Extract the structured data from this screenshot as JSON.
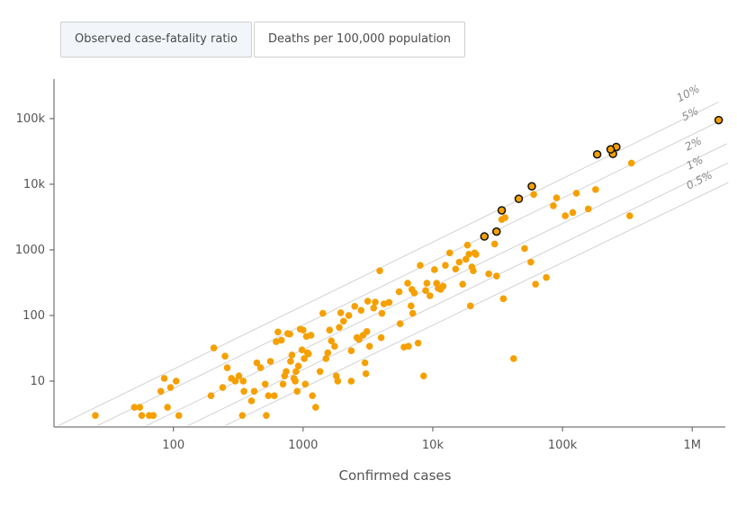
{
  "tabs": [
    {
      "label": "Observed case-fatality ratio",
      "active": true
    },
    {
      "label": "Deaths per 100,000 population",
      "active": false
    }
  ],
  "chart_data": {
    "type": "scatter",
    "scale": "log-log",
    "xlabel": "Confirmed cases",
    "ylabel": "",
    "xlim": [
      12,
      1800000
    ],
    "ylim": [
      2,
      400000
    ],
    "x_ticks": [
      {
        "v": 100,
        "label": "100"
      },
      {
        "v": 1000,
        "label": "1000"
      },
      {
        "v": 10000,
        "label": "10k"
      },
      {
        "v": 100000,
        "label": "100k"
      },
      {
        "v": 1000000,
        "label": "1M"
      }
    ],
    "y_ticks": [
      {
        "v": 10,
        "label": "10"
      },
      {
        "v": 100,
        "label": "100"
      },
      {
        "v": 1000,
        "label": "1000"
      },
      {
        "v": 10000,
        "label": "10k"
      },
      {
        "v": 100000,
        "label": "100k"
      }
    ],
    "reference_lines": [
      {
        "label": "10%",
        "ratio": 0.1
      },
      {
        "label": "5%",
        "ratio": 0.05
      },
      {
        "label": "2%",
        "ratio": 0.02
      },
      {
        "label": "1%",
        "ratio": 0.01
      },
      {
        "label": "0.5%",
        "ratio": 0.005
      }
    ],
    "colors": {
      "point": "#f5a000",
      "highlight_stroke": "#111111",
      "reference": "#d2d2d2"
    },
    "highlighted": [
      [
        1600000,
        95000
      ],
      [
        260000,
        37000
      ],
      [
        245000,
        29000
      ],
      [
        235000,
        34000
      ],
      [
        185000,
        28500
      ],
      [
        58000,
        9300
      ],
      [
        46000,
        6000
      ],
      [
        34000,
        4000
      ],
      [
        31000,
        1900
      ],
      [
        25000,
        1600
      ]
    ],
    "points": [
      [
        25,
        3
      ],
      [
        50,
        4
      ],
      [
        55,
        4
      ],
      [
        57,
        3
      ],
      [
        65,
        3
      ],
      [
        70,
        3
      ],
      [
        80,
        7
      ],
      [
        85,
        11
      ],
      [
        90,
        4
      ],
      [
        95,
        8
      ],
      [
        105,
        10
      ],
      [
        110,
        3
      ],
      [
        195,
        6
      ],
      [
        205,
        32
      ],
      [
        240,
        8
      ],
      [
        250,
        24
      ],
      [
        260,
        16
      ],
      [
        280,
        11
      ],
      [
        300,
        10
      ],
      [
        320,
        12
      ],
      [
        340,
        3
      ],
      [
        345,
        10
      ],
      [
        350,
        7
      ],
      [
        400,
        5
      ],
      [
        420,
        7
      ],
      [
        440,
        19
      ],
      [
        470,
        16
      ],
      [
        510,
        9
      ],
      [
        520,
        3
      ],
      [
        540,
        6
      ],
      [
        560,
        20
      ],
      [
        600,
        6
      ],
      [
        620,
        40
      ],
      [
        640,
        56
      ],
      [
        680,
        42
      ],
      [
        700,
        9
      ],
      [
        720,
        12
      ],
      [
        740,
        14
      ],
      [
        760,
        53
      ],
      [
        790,
        52
      ],
      [
        800,
        20
      ],
      [
        820,
        25
      ],
      [
        850,
        11
      ],
      [
        870,
        10
      ],
      [
        880,
        14
      ],
      [
        900,
        7
      ],
      [
        920,
        17
      ],
      [
        950,
        62
      ],
      [
        980,
        30
      ],
      [
        1000,
        60
      ],
      [
        1020,
        22
      ],
      [
        1040,
        9
      ],
      [
        1060,
        48
      ],
      [
        1080,
        27
      ],
      [
        1100,
        26
      ],
      [
        1150,
        50
      ],
      [
        1180,
        6
      ],
      [
        1250,
        4
      ],
      [
        1350,
        14
      ],
      [
        1420,
        108
      ],
      [
        1500,
        22
      ],
      [
        1550,
        27
      ],
      [
        1600,
        60
      ],
      [
        1650,
        41
      ],
      [
        1750,
        34
      ],
      [
        1800,
        12
      ],
      [
        1850,
        10
      ],
      [
        1900,
        66
      ],
      [
        1950,
        110
      ],
      [
        2050,
        82
      ],
      [
        2250,
        100
      ],
      [
        2350,
        10
      ],
      [
        2350,
        29
      ],
      [
        2500,
        138
      ],
      [
        2600,
        46
      ],
      [
        2700,
        43
      ],
      [
        2800,
        120
      ],
      [
        2900,
        50
      ],
      [
        3000,
        19
      ],
      [
        3050,
        13
      ],
      [
        3100,
        57
      ],
      [
        3150,
        165
      ],
      [
        3250,
        34
      ],
      [
        3500,
        130
      ],
      [
        3600,
        160
      ],
      [
        3900,
        480
      ],
      [
        4000,
        46
      ],
      [
        4050,
        108
      ],
      [
        4200,
        150
      ],
      [
        4600,
        158
      ],
      [
        5500,
        230
      ],
      [
        5600,
        75
      ],
      [
        6000,
        33
      ],
      [
        6400,
        310
      ],
      [
        6500,
        34
      ],
      [
        6800,
        140
      ],
      [
        6900,
        250
      ],
      [
        7000,
        108
      ],
      [
        7200,
        220
      ],
      [
        7700,
        38
      ],
      [
        8000,
        580
      ],
      [
        8500,
        12
      ],
      [
        8800,
        240
      ],
      [
        9000,
        310
      ],
      [
        9500,
        200
      ],
      [
        10300,
        500
      ],
      [
        10700,
        310
      ],
      [
        11000,
        260
      ],
      [
        11500,
        250
      ],
      [
        12000,
        280
      ],
      [
        12500,
        580
      ],
      [
        13500,
        900
      ],
      [
        15000,
        510
      ],
      [
        16000,
        650
      ],
      [
        17000,
        300
      ],
      [
        18000,
        720
      ],
      [
        18500,
        1180
      ],
      [
        19000,
        860
      ],
      [
        19500,
        140
      ],
      [
        20000,
        550
      ],
      [
        20500,
        480
      ],
      [
        21000,
        900
      ],
      [
        21500,
        850
      ],
      [
        27000,
        430
      ],
      [
        30000,
        1230
      ],
      [
        31000,
        400
      ],
      [
        34000,
        2900
      ],
      [
        35000,
        180
      ],
      [
        36000,
        3100
      ],
      [
        42000,
        22
      ],
      [
        51000,
        1050
      ],
      [
        57000,
        650
      ],
      [
        60000,
        7000
      ],
      [
        62000,
        300
      ],
      [
        75000,
        380
      ],
      [
        85000,
        4700
      ],
      [
        90000,
        6200
      ],
      [
        105000,
        3300
      ],
      [
        120000,
        3700
      ],
      [
        128000,
        7300
      ],
      [
        158000,
        4200
      ],
      [
        180000,
        8300
      ],
      [
        330000,
        3300
      ],
      [
        340000,
        21000
      ]
    ]
  }
}
